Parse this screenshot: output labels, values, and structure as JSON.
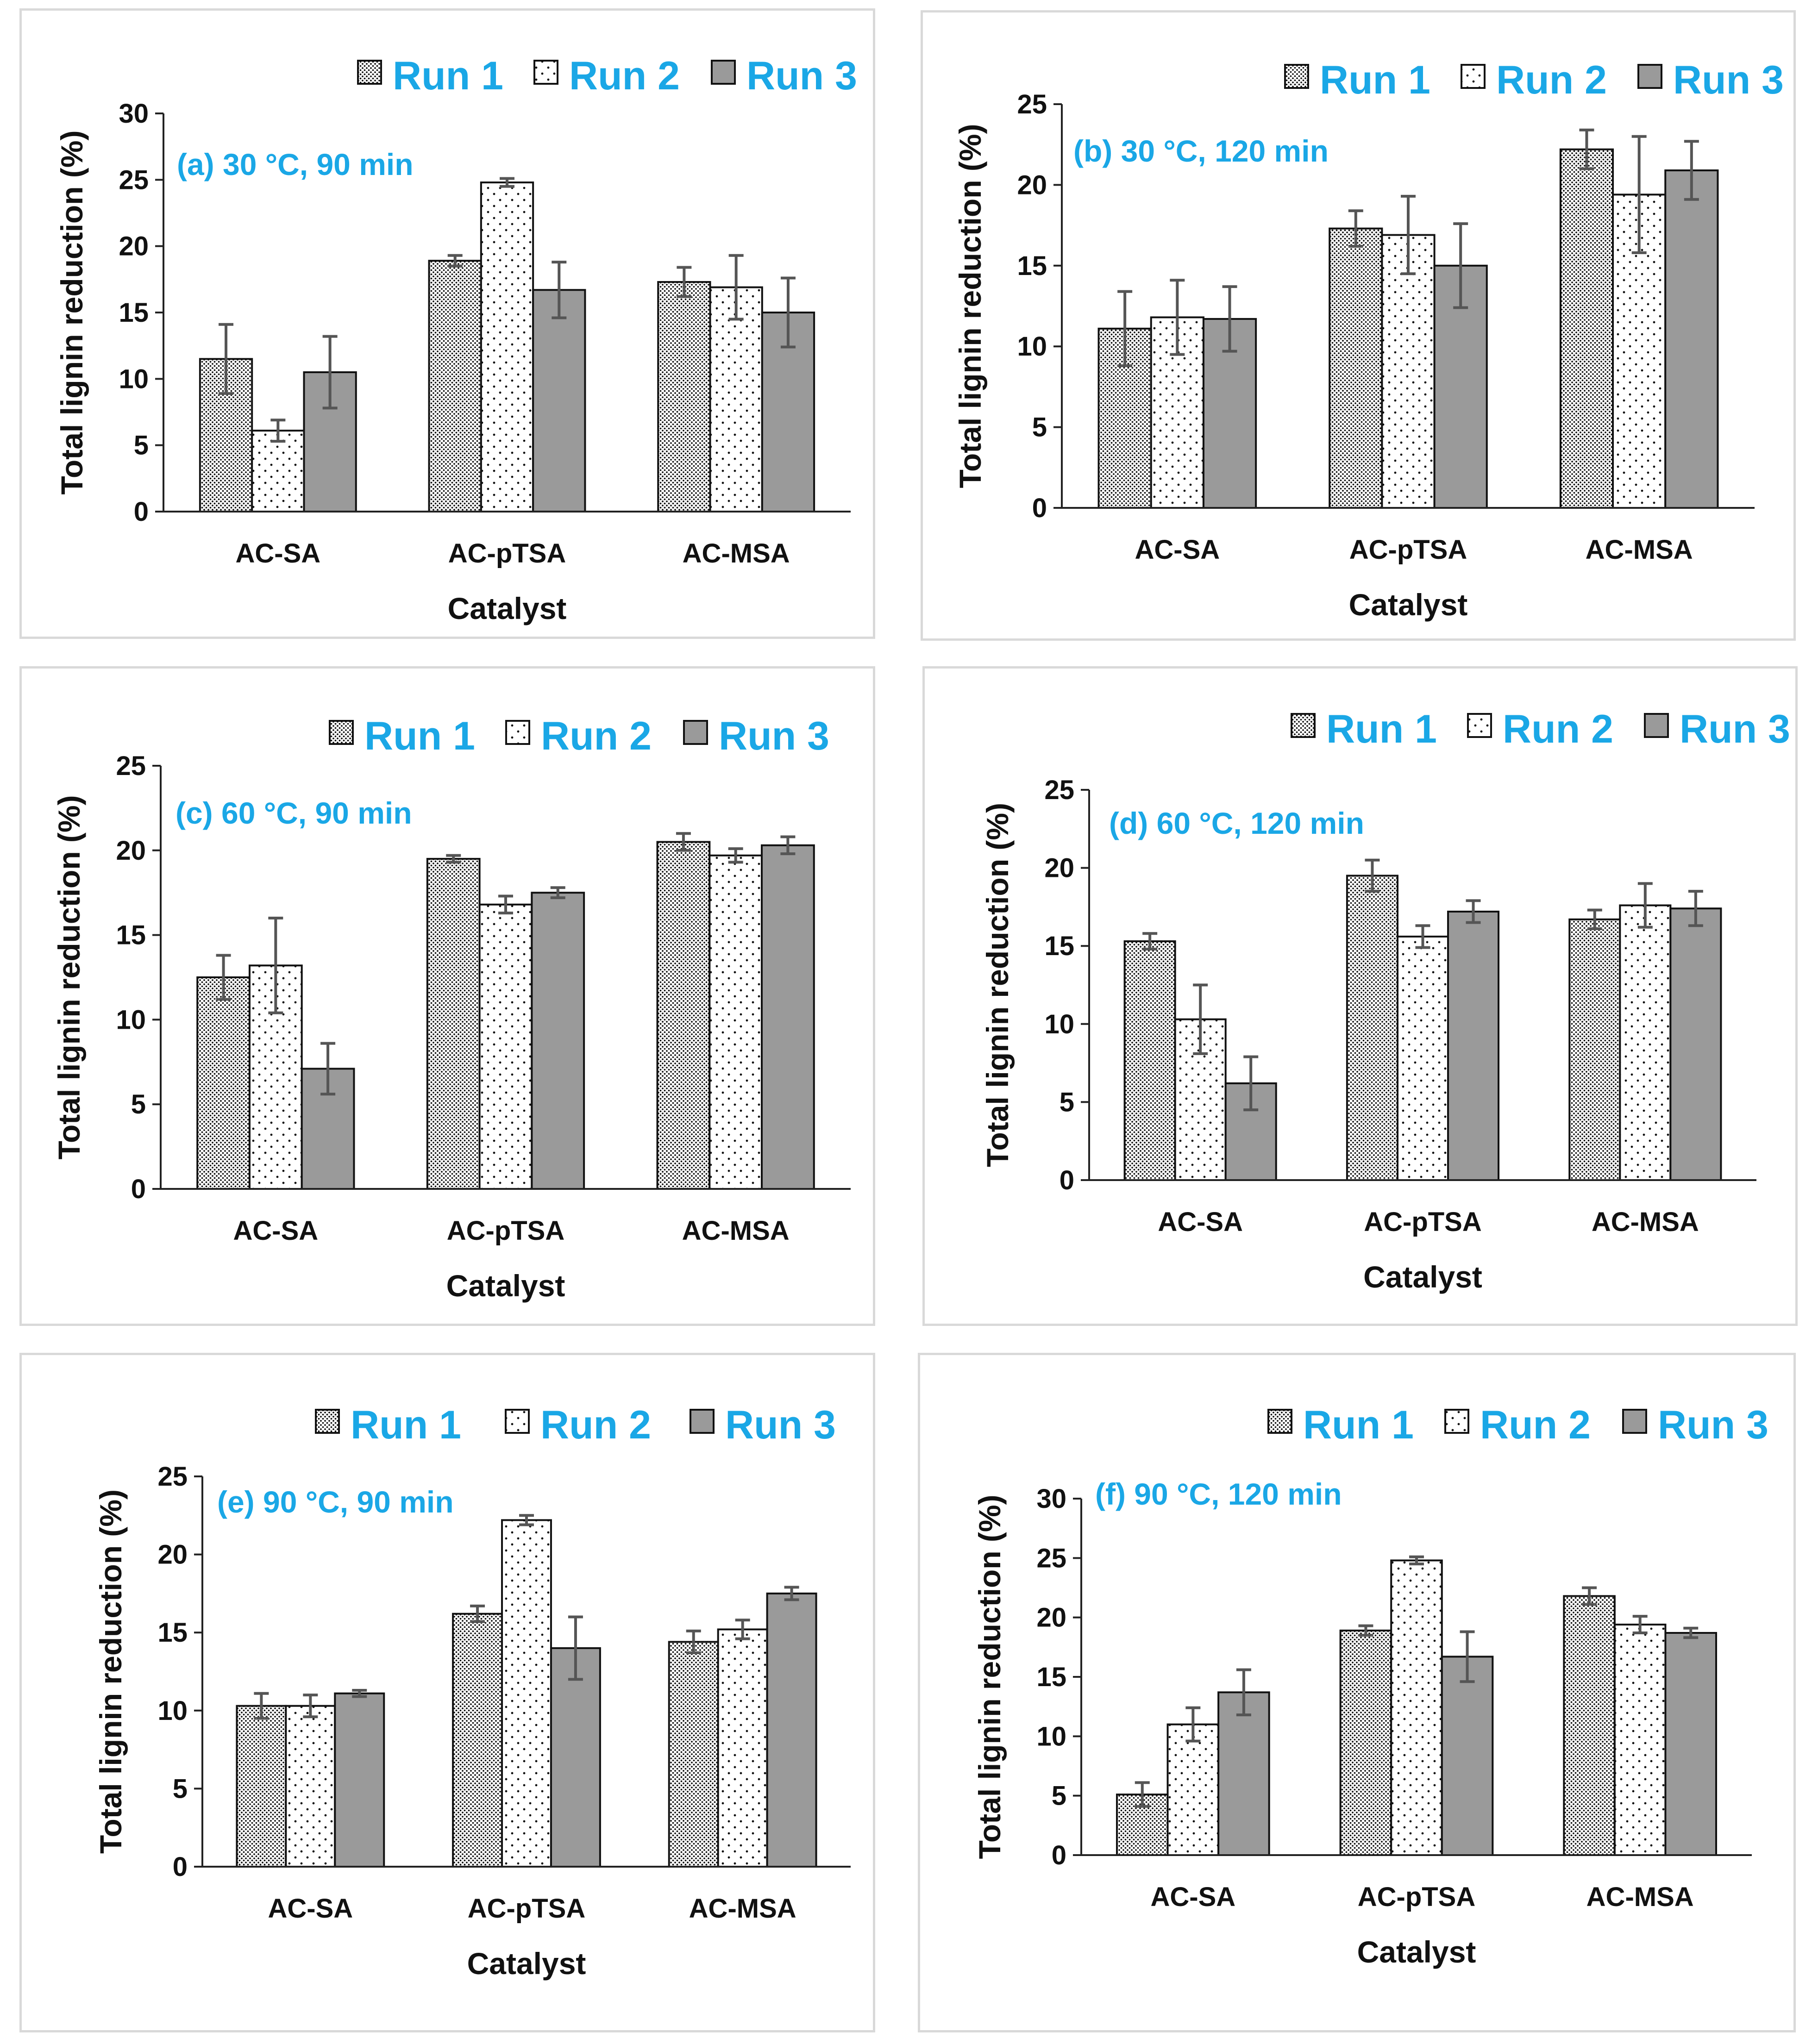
{
  "colors": {
    "accent": "#1aa7e6",
    "run3_fill": "#9a9a9a",
    "error_bar": "#555555",
    "axis": "#222222",
    "text": "#111111"
  },
  "chart_data": [
    {
      "type": "bar",
      "title": "(a) 30 °C, 90 min",
      "xlabel": "Catalyst",
      "ylabel": "Total lignin reduction (%)",
      "ylim": [
        0,
        30
      ],
      "yticks": [
        "0",
        "5",
        "10",
        "15",
        "20",
        "25",
        "30"
      ],
      "categories": [
        "AC-SA",
        "AC-pTSA",
        "AC-MSA"
      ],
      "legend_position": "top-right",
      "series": [
        {
          "name": "Run 1",
          "values": [
            11.5,
            18.9,
            17.3
          ],
          "errors": [
            2.6,
            0.4,
            1.1
          ]
        },
        {
          "name": "Run 2",
          "values": [
            6.1,
            24.8,
            16.9
          ],
          "errors": [
            0.8,
            0.3,
            2.4
          ]
        },
        {
          "name": "Run 3",
          "values": [
            10.5,
            16.7,
            15.0
          ],
          "errors": [
            2.7,
            2.1,
            2.6
          ]
        }
      ]
    },
    {
      "type": "bar",
      "title": "(b) 30 °C, 120 min",
      "xlabel": "Catalyst",
      "ylabel": "Total lignin reduction (%)",
      "ylim": [
        0,
        25
      ],
      "yticks": [
        "0",
        "5",
        "10",
        "15",
        "20",
        "25"
      ],
      "categories": [
        "AC-SA",
        "AC-pTSA",
        "AC-MSA"
      ],
      "legend_position": "top-right",
      "series": [
        {
          "name": "Run 1",
          "values": [
            11.1,
            17.3,
            22.2
          ],
          "errors": [
            2.3,
            1.1,
            1.2
          ]
        },
        {
          "name": "Run 2",
          "values": [
            11.8,
            16.9,
            19.4
          ],
          "errors": [
            2.3,
            2.4,
            3.6
          ]
        },
        {
          "name": "Run 3",
          "values": [
            11.7,
            15.0,
            20.9
          ],
          "errors": [
            2.0,
            2.6,
            1.8
          ]
        }
      ]
    },
    {
      "type": "bar",
      "title": "(c) 60 °C, 90 min",
      "xlabel": "Catalyst",
      "ylabel": "Total lignin reduction (%)",
      "ylim": [
        0,
        25
      ],
      "yticks": [
        "0",
        "5",
        "10",
        "15",
        "20",
        "25"
      ],
      "categories": [
        "AC-SA",
        "AC-pTSA",
        "AC-MSA"
      ],
      "legend_position": "top-right",
      "series": [
        {
          "name": "Run 1",
          "values": [
            12.5,
            19.5,
            20.5
          ],
          "errors": [
            1.3,
            0.2,
            0.5
          ]
        },
        {
          "name": "Run 2",
          "values": [
            13.2,
            16.8,
            19.7
          ],
          "errors": [
            2.8,
            0.5,
            0.4
          ]
        },
        {
          "name": "Run 3",
          "values": [
            7.1,
            17.5,
            20.3
          ],
          "errors": [
            1.5,
            0.3,
            0.5
          ]
        }
      ]
    },
    {
      "type": "bar",
      "title": "(d) 60 °C, 120 min",
      "xlabel": "Catalyst",
      "ylabel": "Total lignin reduction (%)",
      "ylim": [
        0,
        25
      ],
      "yticks": [
        "0",
        "5",
        "10",
        "15",
        "20",
        "25"
      ],
      "categories": [
        "AC-SA",
        "AC-pTSA",
        "AC-MSA"
      ],
      "legend_position": "top-right",
      "series": [
        {
          "name": "Run 1",
          "values": [
            15.3,
            19.5,
            16.7
          ],
          "errors": [
            0.5,
            1.0,
            0.6
          ]
        },
        {
          "name": "Run 2",
          "values": [
            10.3,
            15.6,
            17.6
          ],
          "errors": [
            2.2,
            0.7,
            1.4
          ]
        },
        {
          "name": "Run 3",
          "values": [
            6.2,
            17.2,
            17.4
          ],
          "errors": [
            1.7,
            0.7,
            1.1
          ]
        }
      ]
    },
    {
      "type": "bar",
      "title": "(e) 90 °C, 90 min",
      "xlabel": "Catalyst",
      "ylabel": "Total lignin reduction (%)",
      "ylim": [
        0,
        25
      ],
      "yticks": [
        "0",
        "5",
        "10",
        "15",
        "20",
        "25"
      ],
      "categories": [
        "AC-SA",
        "AC-pTSA",
        "AC-MSA"
      ],
      "legend_position": "top-right",
      "series": [
        {
          "name": "Run 1",
          "values": [
            10.3,
            16.2,
            14.4
          ],
          "errors": [
            0.8,
            0.5,
            0.7
          ]
        },
        {
          "name": "Run 2",
          "values": [
            10.3,
            22.2,
            15.2
          ],
          "errors": [
            0.7,
            0.3,
            0.6
          ]
        },
        {
          "name": "Run 3",
          "values": [
            11.1,
            14.0,
            17.5
          ],
          "errors": [
            0.2,
            2.0,
            0.4
          ]
        }
      ]
    },
    {
      "type": "bar",
      "title": "(f) 90 °C, 120 min",
      "xlabel": "Catalyst",
      "ylabel": "Total lignin reduction (%)",
      "ylim": [
        0,
        30
      ],
      "yticks": [
        "0",
        "5",
        "10",
        "15",
        "20",
        "25",
        "30"
      ],
      "categories": [
        "AC-SA",
        "AC-pTSA",
        "AC-MSA"
      ],
      "legend_position": "top-right",
      "series": [
        {
          "name": "Run 1",
          "values": [
            5.1,
            18.9,
            21.8
          ],
          "errors": [
            1.0,
            0.4,
            0.7
          ]
        },
        {
          "name": "Run 2",
          "values": [
            11.0,
            24.8,
            19.4
          ],
          "errors": [
            1.4,
            0.3,
            0.7
          ]
        },
        {
          "name": "Run 3",
          "values": [
            13.7,
            16.7,
            18.7
          ],
          "errors": [
            1.9,
            2.1,
            0.4
          ]
        }
      ]
    }
  ]
}
